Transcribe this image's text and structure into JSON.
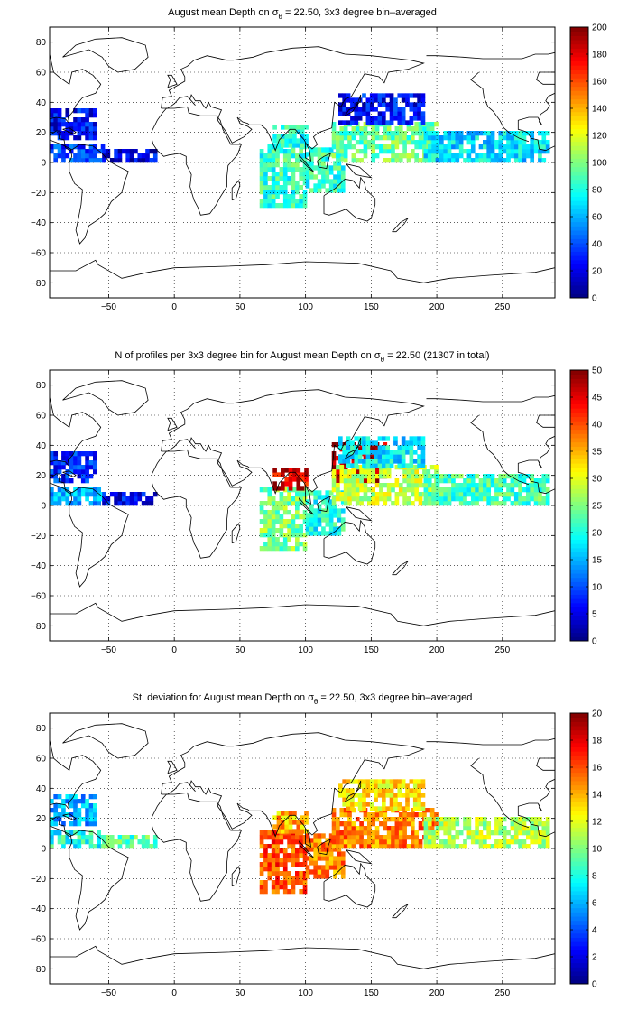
{
  "chart_data": [
    {
      "type": "heatmap",
      "title": "August mean Depth on σθ = 22.50, 3x3 degree bin–averaged",
      "title_parts": [
        "August mean Depth on ",
        "σ",
        "θ",
        " = 22.50, 3x3 degree bin–averaged"
      ],
      "xlim": [
        -95,
        290
      ],
      "ylim": [
        -90,
        90
      ],
      "xticks": [
        -50,
        0,
        50,
        100,
        150,
        200,
        250
      ],
      "yticks": [
        -80,
        -60,
        -40,
        -20,
        0,
        20,
        40,
        60,
        80
      ],
      "grid": true,
      "colorbar": {
        "range": [
          0,
          200
        ],
        "ticks": [
          0,
          20,
          40,
          60,
          80,
          100,
          120,
          140,
          160,
          180,
          200
        ],
        "colormap": "jet"
      },
      "bin_size_deg": 3,
      "regions": [
        {
          "lon": [
            -95,
            -55
          ],
          "lat": [
            0,
            12
          ],
          "value": 35
        },
        {
          "lon": [
            -95,
            -60
          ],
          "lat": [
            15,
            35
          ],
          "value": 25
        },
        {
          "lon": [
            -55,
            -15
          ],
          "lat": [
            0,
            8
          ],
          "value": 20
        },
        {
          "lon": [
            65,
            100
          ],
          "lat": [
            -30,
            10
          ],
          "value": 85
        },
        {
          "lon": [
            75,
            100
          ],
          "lat": [
            10,
            25
          ],
          "value": 80
        },
        {
          "lon": [
            100,
            130
          ],
          "lat": [
            -20,
            10
          ],
          "value": 85
        },
        {
          "lon": [
            120,
            200
          ],
          "lat": [
            0,
            25
          ],
          "value": 95
        },
        {
          "lon": [
            125,
            190
          ],
          "lat": [
            25,
            45
          ],
          "value": 25
        },
        {
          "lon": [
            190,
            285
          ],
          "lat": [
            0,
            20
          ],
          "value": 70
        }
      ]
    },
    {
      "type": "heatmap",
      "title": "N of profiles per 3x3 degree bin for August mean Depth on σθ = 22.50 (21307 in total)",
      "title_parts": [
        "N of profiles per 3x3 degree bin for August mean Depth on ",
        "σ",
        "θ",
        " = 22.50 (21307 in total)"
      ],
      "total_profiles": 21307,
      "xlim": [
        -95,
        290
      ],
      "ylim": [
        -90,
        90
      ],
      "xticks": [
        -50,
        0,
        50,
        100,
        150,
        200,
        250
      ],
      "yticks": [
        -80,
        -60,
        -40,
        -20,
        0,
        20,
        40,
        60,
        80
      ],
      "grid": true,
      "colorbar": {
        "range": [
          0,
          50
        ],
        "ticks": [
          0,
          5,
          10,
          15,
          20,
          25,
          30,
          35,
          40,
          45,
          50
        ],
        "colormap": "jet"
      },
      "bin_size_deg": 3,
      "regions": [
        {
          "lon": [
            -95,
            -55
          ],
          "lat": [
            0,
            12
          ],
          "value": 15
        },
        {
          "lon": [
            -95,
            -60
          ],
          "lat": [
            15,
            35
          ],
          "value": 8
        },
        {
          "lon": [
            -55,
            -15
          ],
          "lat": [
            0,
            8
          ],
          "value": 6
        },
        {
          "lon": [
            65,
            100
          ],
          "lat": [
            -30,
            10
          ],
          "value": 25
        },
        {
          "lon": [
            75,
            100
          ],
          "lat": [
            10,
            25
          ],
          "value": 45
        },
        {
          "lon": [
            100,
            130
          ],
          "lat": [
            -20,
            10
          ],
          "value": 20
        },
        {
          "lon": [
            120,
            160
          ],
          "lat": [
            15,
            40
          ],
          "value": 48
        },
        {
          "lon": [
            120,
            200
          ],
          "lat": [
            0,
            25
          ],
          "value": 28
        },
        {
          "lon": [
            125,
            190
          ],
          "lat": [
            25,
            45
          ],
          "value": 18
        },
        {
          "lon": [
            190,
            285
          ],
          "lat": [
            0,
            20
          ],
          "value": 22
        }
      ]
    },
    {
      "type": "heatmap",
      "title": "St. deviation for August mean Depth on σθ = 22.50, 3x3 degree bin–averaged",
      "title_parts": [
        "St. deviation for August mean Depth on ",
        "σ",
        "θ",
        " = 22.50, 3x3 degree bin–averaged"
      ],
      "xlim": [
        -95,
        290
      ],
      "ylim": [
        -90,
        90
      ],
      "xticks": [
        -50,
        0,
        50,
        100,
        150,
        200,
        250
      ],
      "yticks": [
        -80,
        -60,
        -40,
        -20,
        0,
        20,
        40,
        60,
        80
      ],
      "grid": true,
      "colorbar": {
        "range": [
          0,
          20
        ],
        "ticks": [
          0,
          2,
          4,
          6,
          8,
          10,
          12,
          14,
          16,
          18,
          20
        ],
        "colormap": "jet"
      },
      "bin_size_deg": 3,
      "regions": [
        {
          "lon": [
            -95,
            -55
          ],
          "lat": [
            0,
            12
          ],
          "value": 8
        },
        {
          "lon": [
            -95,
            -60
          ],
          "lat": [
            15,
            35
          ],
          "value": 6
        },
        {
          "lon": [
            -55,
            -15
          ],
          "lat": [
            0,
            8
          ],
          "value": 9
        },
        {
          "lon": [
            65,
            100
          ],
          "lat": [
            -30,
            10
          ],
          "value": 16
        },
        {
          "lon": [
            75,
            100
          ],
          "lat": [
            10,
            25
          ],
          "value": 14
        },
        {
          "lon": [
            100,
            130
          ],
          "lat": [
            -20,
            10
          ],
          "value": 15
        },
        {
          "lon": [
            120,
            200
          ],
          "lat": [
            0,
            25
          ],
          "value": 15
        },
        {
          "lon": [
            125,
            190
          ],
          "lat": [
            25,
            45
          ],
          "value": 13
        },
        {
          "lon": [
            190,
            285
          ],
          "lat": [
            0,
            20
          ],
          "value": 11
        }
      ]
    }
  ]
}
